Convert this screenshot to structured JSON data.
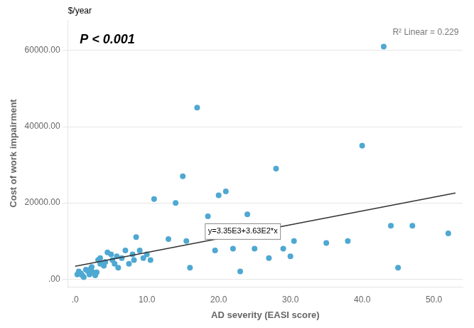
{
  "chart_data": {
    "type": "scatter",
    "xlabel": "AD severity (EASI score)",
    "ylabel": "Cost of work impairment",
    "annotations": [
      "$/year",
      "P < 0.001",
      "R² Linear = 0.229",
      "y=3.35E3+3.63E2*x"
    ],
    "xlim": [
      -1,
      54
    ],
    "ylim": [
      -2000,
      68000
    ],
    "xticks": [
      {
        "value": 0,
        "label": ".0"
      },
      {
        "value": 10,
        "label": "10.0"
      },
      {
        "value": 20,
        "label": "20.0"
      },
      {
        "value": 30,
        "label": "30.0"
      },
      {
        "value": 40,
        "label": "40.0"
      },
      {
        "value": 50,
        "label": "50.0"
      }
    ],
    "yticks": [
      {
        "value": 0,
        "label": ".00"
      },
      {
        "value": 20000,
        "label": "20000.00"
      },
      {
        "value": 40000,
        "label": "40000.00"
      },
      {
        "value": 60000,
        "label": "60000.00"
      }
    ],
    "grid": "y",
    "series": [
      {
        "type": "scatter",
        "color": "#4EA8D2",
        "x": [
          0.3,
          0.5,
          0.8,
          1.0,
          1.2,
          1.5,
          1.8,
          2.0,
          2.0,
          2.2,
          2.3,
          2.5,
          2.8,
          3.0,
          3.2,
          3.5,
          3.5,
          4.0,
          4.2,
          4.5,
          5.0,
          5.2,
          5.5,
          5.8,
          6.0,
          6.5,
          7.0,
          7.5,
          8.0,
          8.2,
          8.5,
          9.0,
          9.5,
          10.0,
          10.5,
          11.0,
          13.0,
          14.0,
          15.0,
          15.5,
          16.0,
          17.0,
          18.5,
          19.5,
          20.0,
          21.0,
          22.0,
          23.0,
          24.0,
          25.0,
          27.0,
          28.0,
          29.0,
          30.0,
          30.5,
          35.0,
          38.0,
          40.0,
          43.0,
          44.0,
          45.0,
          47.0,
          52.0
        ],
        "values": [
          1200,
          2000,
          1500,
          1000,
          500,
          2500,
          2000,
          1800,
          1200,
          2800,
          3200,
          1800,
          1000,
          1800,
          5000,
          4000,
          5500,
          3500,
          4500,
          7000,
          6500,
          5000,
          4000,
          6000,
          3000,
          5500,
          7500,
          4000,
          6500,
          5000,
          11000,
          7500,
          5500,
          6500,
          5000,
          21000,
          10500,
          20000,
          27000,
          10000,
          3000,
          45000,
          16500,
          7500,
          22000,
          23000,
          8000,
          2000,
          17000,
          8000,
          5500,
          29000,
          8000,
          6000,
          10000,
          9500,
          10000,
          35000,
          61000,
          14000,
          3000,
          14000,
          12000
        ]
      },
      {
        "type": "line",
        "color": "#333333",
        "x": [
          0,
          53
        ],
        "values": [
          3350,
          22589
        ]
      }
    ]
  }
}
